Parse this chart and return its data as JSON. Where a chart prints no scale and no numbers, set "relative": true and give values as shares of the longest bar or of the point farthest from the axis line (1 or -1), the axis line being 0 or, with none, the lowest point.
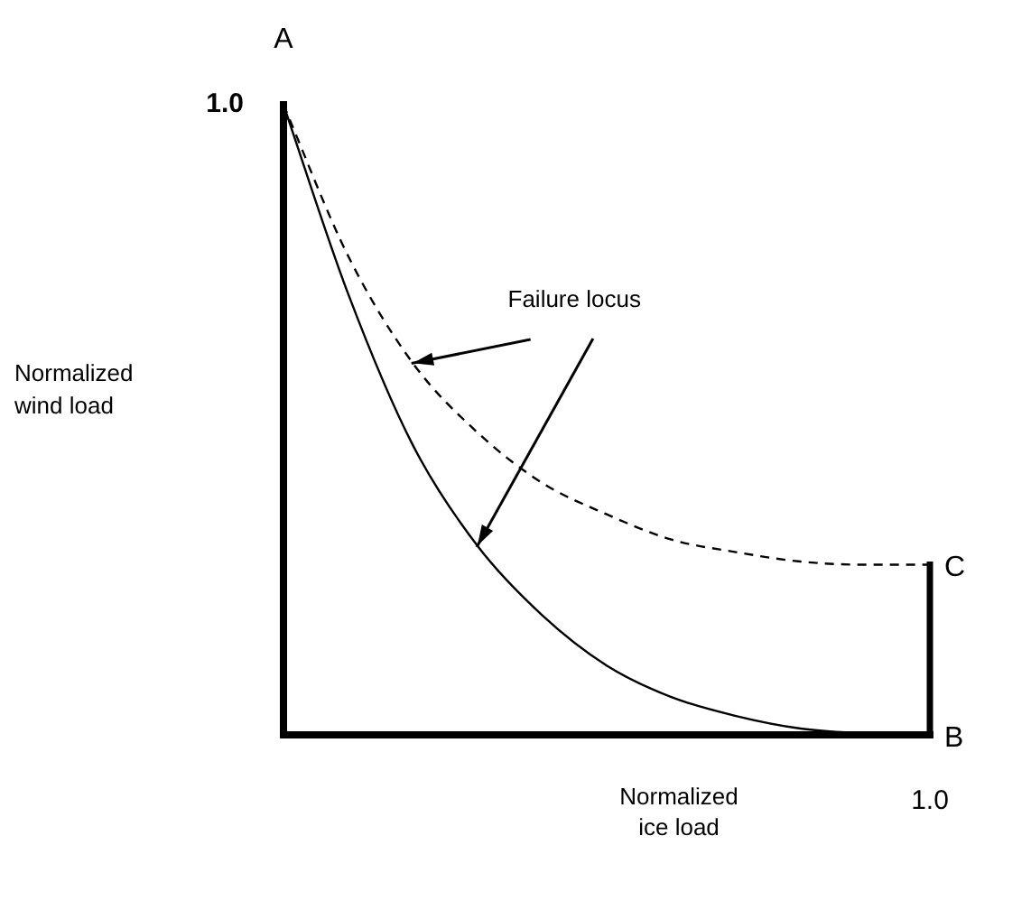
{
  "chart_data": {
    "type": "line",
    "xlabel": "Normalized ice load",
    "relative": true,
    "categories": [
      null,
      null,
      null,
      null,
      null,
      null,
      null,
      null,
      null,
      null,
      null
    ],
    "series": [
      {
        "color": "#000000",
        "line_style": "solid",
        "values": [
          1,
          0.7,
          0.46,
          0.3,
          0.19,
          0.11,
          0.06,
          0.03,
          0.01,
          0.002,
          0
        ]
      },
      {
        "color": "#000000",
        "line_style": "dashed",
        "values": [
          1,
          0.76,
          0.59,
          0.48,
          0.4,
          0.35,
          0.31,
          0.29,
          0.275,
          0.27,
          0.27
        ]
      }
    ],
    "legend": false,
    "marker": "none",
    "annotations": [
      "A",
      "B",
      "C",
      "Failure locus",
      "1.0",
      "1.0",
      "Normalized wind load"
    ]
  }
}
